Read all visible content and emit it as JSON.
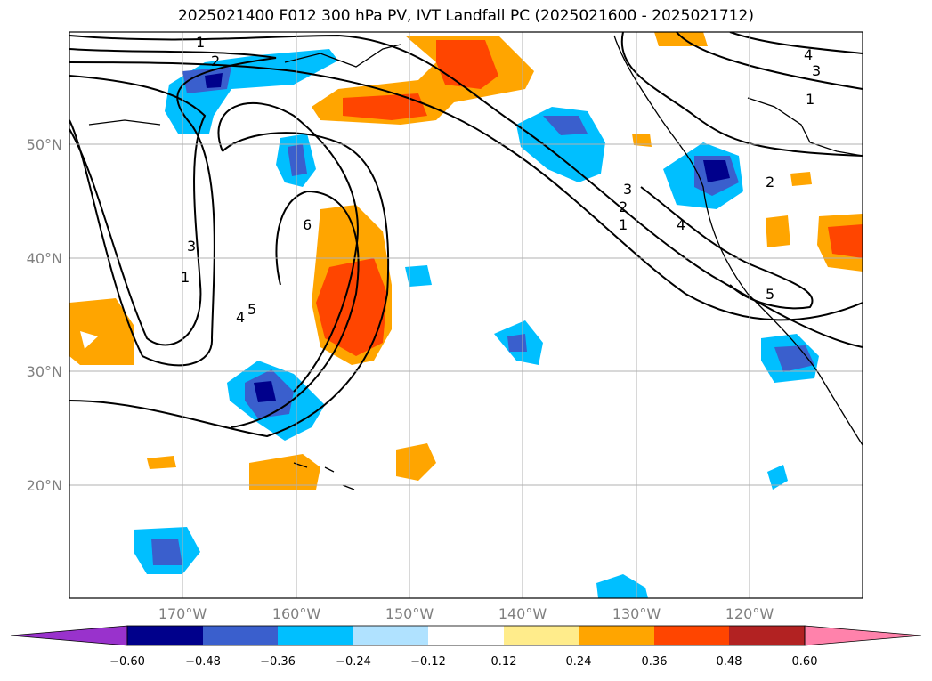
{
  "title": "2025021400 F012 300 hPa PV, IVT Landfall PC (2025021600 - 2025021712)",
  "lat_labels": [
    "50°N",
    "40°N",
    "30°N",
    "20°N"
  ],
  "lon_labels": [
    "170°W",
    "160°W",
    "150°W",
    "140°W",
    "130°W",
    "120°W"
  ],
  "colorbar": {
    "ticks": [
      "−0.60",
      "−0.48",
      "−0.36",
      "−0.24",
      "−0.12",
      "0.12",
      "0.24",
      "0.36",
      "0.48",
      "0.60"
    ],
    "colors": [
      "#9932CC",
      "#00008B",
      "#3A5FCD",
      "#00BFFF",
      "#B0E2FF",
      "#FFFFFF",
      "#FFEC8B",
      "#FFA500",
      "#FF4500",
      "#B22222",
      "#FF82AB"
    ]
  },
  "contour_labels": [
    "1",
    "2",
    "3",
    "4",
    "5",
    "6"
  ]
}
